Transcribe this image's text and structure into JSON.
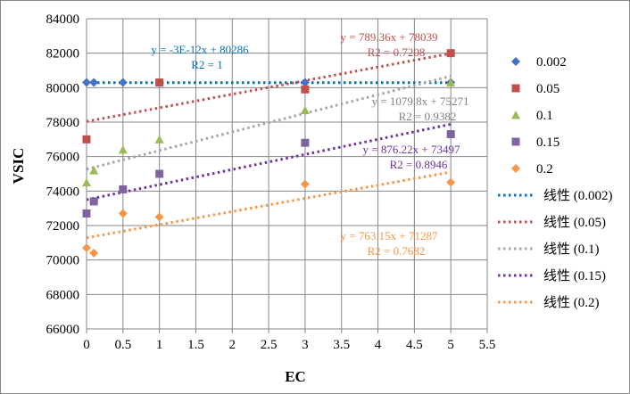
{
  "chart_data": {
    "type": "scatter",
    "xlabel": "EC",
    "ylabel": "VSIC",
    "xlim": [
      0,
      5.5
    ],
    "ylim": [
      66000,
      84000
    ],
    "x_ticks": [
      "0",
      "0.5",
      "1",
      "1.5",
      "2",
      "2.5",
      "3",
      "3.5",
      "4",
      "4.5",
      "5",
      "5.5"
    ],
    "y_ticks": [
      "66000",
      "68000",
      "70000",
      "72000",
      "74000",
      "76000",
      "78000",
      "80000",
      "82000",
      "84000"
    ],
    "grid": true,
    "legend_position": "right",
    "series": [
      {
        "name": "0.002",
        "marker": "diamond",
        "color": "#4472C4",
        "x": [
          0,
          0.1,
          0.5,
          1,
          3,
          5
        ],
        "y": [
          80300,
          80300,
          80300,
          80300,
          80300,
          80300
        ],
        "trendline": {
          "label": "线性 (0.002)",
          "slope": 0,
          "intercept": 80286,
          "equation": "y = -3E-12x + 80286",
          "r2": "R2 = 1",
          "color": "#0070C0"
        }
      },
      {
        "name": "0.05",
        "marker": "square",
        "color": "#C0504D",
        "x": [
          0,
          1,
          3,
          5
        ],
        "y": [
          77000,
          80300,
          79900,
          82000
        ],
        "trendline": {
          "label": "线性 (0.05)",
          "slope": 789.36,
          "intercept": 78039,
          "equation": "y = 789.36x + 78039",
          "r2": "R2 = 0.7208",
          "color": "#C0504D"
        }
      },
      {
        "name": "0.1",
        "marker": "triangle",
        "color": "#9BBB59",
        "x": [
          0,
          0.1,
          0.5,
          1,
          3,
          5
        ],
        "y": [
          74500,
          75200,
          76400,
          77000,
          78700,
          80300
        ],
        "trendline": {
          "label": "线性 (0.1)",
          "slope": 1079.8,
          "intercept": 75271,
          "equation": "y = 1079.8x + 75271",
          "r2": "R2 = 0.9382",
          "color": "#A6A6A6"
        }
      },
      {
        "name": "0.15",
        "marker": "square",
        "color": "#8064A2",
        "x": [
          0,
          0.1,
          0.5,
          1,
          3,
          5
        ],
        "y": [
          72700,
          73400,
          74100,
          75000,
          76800,
          77300
        ],
        "trendline": {
          "label": "线性 (0.15)",
          "slope": 876.22,
          "intercept": 73497,
          "equation": "y = 876.22x + 73497",
          "r2": "R2 = 0.8946",
          "color": "#7030A0"
        }
      },
      {
        "name": "0.2",
        "marker": "diamond",
        "color": "#F79646",
        "x": [
          0,
          0.1,
          0.5,
          1,
          3,
          5
        ],
        "y": [
          70700,
          70400,
          72700,
          72500,
          74400,
          74500
        ],
        "trendline": {
          "label": "线性 (0.2)",
          "slope": 763.15,
          "intercept": 71287,
          "equation": "y = 763.15x + 71287",
          "r2": "R2 = 0.7682",
          "color": "#F79646"
        }
      }
    ]
  }
}
